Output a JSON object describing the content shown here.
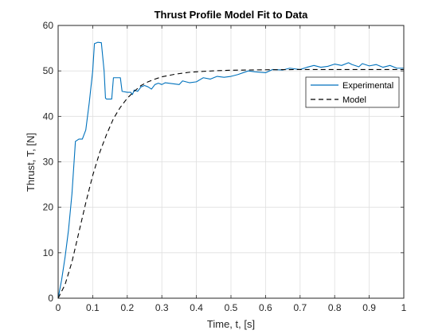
{
  "chart_data": {
    "type": "line",
    "title": "Thrust Profile Model Fit to Data",
    "xlabel": "Time, t, [s]",
    "ylabel": "Thrust, T, [N]",
    "xlim": [
      0,
      1
    ],
    "ylim": [
      0,
      60
    ],
    "xticks": [
      "0",
      "0.1",
      "0.2",
      "0.3",
      "0.4",
      "0.5",
      "0.6",
      "0.7",
      "0.8",
      "0.9",
      "1"
    ],
    "yticks": [
      "0",
      "10",
      "20",
      "30",
      "40",
      "50",
      "60"
    ],
    "grid": true,
    "legend_position": "upper-right",
    "series": [
      {
        "name": "Experimental",
        "style": "solid",
        "color": "#0072BD",
        "points": [
          [
            0.0,
            0.0
          ],
          [
            0.01,
            4.0
          ],
          [
            0.02,
            9.0
          ],
          [
            0.03,
            15.0
          ],
          [
            0.04,
            23.0
          ],
          [
            0.05,
            34.5
          ],
          [
            0.06,
            35.0
          ],
          [
            0.07,
            35.0
          ],
          [
            0.08,
            37.0
          ],
          [
            0.09,
            43.0
          ],
          [
            0.1,
            50.0
          ],
          [
            0.105,
            56.0
          ],
          [
            0.115,
            56.3
          ],
          [
            0.125,
            56.2
          ],
          [
            0.133,
            50.0
          ],
          [
            0.137,
            44.0
          ],
          [
            0.14,
            43.8
          ],
          [
            0.155,
            43.8
          ],
          [
            0.16,
            48.5
          ],
          [
            0.17,
            48.5
          ],
          [
            0.18,
            48.5
          ],
          [
            0.185,
            45.5
          ],
          [
            0.2,
            45.3
          ],
          [
            0.21,
            45.3
          ],
          [
            0.215,
            44.8
          ],
          [
            0.22,
            45.8
          ],
          [
            0.23,
            45.5
          ],
          [
            0.24,
            46.5
          ],
          [
            0.25,
            46.8
          ],
          [
            0.26,
            46.5
          ],
          [
            0.27,
            46.0
          ],
          [
            0.28,
            47.0
          ],
          [
            0.29,
            47.3
          ],
          [
            0.3,
            47.0
          ],
          [
            0.31,
            47.4
          ],
          [
            0.33,
            47.2
          ],
          [
            0.35,
            47.0
          ],
          [
            0.36,
            47.8
          ],
          [
            0.38,
            47.4
          ],
          [
            0.4,
            47.6
          ],
          [
            0.42,
            48.5
          ],
          [
            0.44,
            48.2
          ],
          [
            0.46,
            48.8
          ],
          [
            0.48,
            48.6
          ],
          [
            0.5,
            48.8
          ],
          [
            0.52,
            49.2
          ],
          [
            0.55,
            50.0
          ],
          [
            0.57,
            49.8
          ],
          [
            0.6,
            49.6
          ],
          [
            0.62,
            50.3
          ],
          [
            0.65,
            50.2
          ],
          [
            0.67,
            50.6
          ],
          [
            0.69,
            50.4
          ],
          [
            0.7,
            50.3
          ],
          [
            0.72,
            50.8
          ],
          [
            0.74,
            51.2
          ],
          [
            0.76,
            50.8
          ],
          [
            0.78,
            51.0
          ],
          [
            0.8,
            51.5
          ],
          [
            0.82,
            51.2
          ],
          [
            0.84,
            51.8
          ],
          [
            0.85,
            51.4
          ],
          [
            0.87,
            50.9
          ],
          [
            0.88,
            51.6
          ],
          [
            0.9,
            51.1
          ],
          [
            0.92,
            51.4
          ],
          [
            0.94,
            50.8
          ],
          [
            0.96,
            51.2
          ],
          [
            0.98,
            50.6
          ],
          [
            1.0,
            50.6
          ]
        ]
      },
      {
        "name": "Model",
        "style": "dashed",
        "color": "#000000",
        "points": [
          [
            0.0,
            0.0
          ],
          [
            0.02,
            3.0
          ],
          [
            0.04,
            8.0
          ],
          [
            0.06,
            14.5
          ],
          [
            0.08,
            21.0
          ],
          [
            0.1,
            27.0
          ],
          [
            0.12,
            32.0
          ],
          [
            0.14,
            36.0
          ],
          [
            0.16,
            39.5
          ],
          [
            0.18,
            42.0
          ],
          [
            0.2,
            44.0
          ],
          [
            0.22,
            45.5
          ],
          [
            0.24,
            46.8
          ],
          [
            0.26,
            47.6
          ],
          [
            0.28,
            48.2
          ],
          [
            0.3,
            48.7
          ],
          [
            0.34,
            49.3
          ],
          [
            0.38,
            49.7
          ],
          [
            0.42,
            49.9
          ],
          [
            0.46,
            50.05
          ],
          [
            0.5,
            50.15
          ],
          [
            0.6,
            50.25
          ],
          [
            0.7,
            50.3
          ],
          [
            0.8,
            50.3
          ],
          [
            0.9,
            50.3
          ],
          [
            1.0,
            50.3
          ]
        ]
      }
    ]
  }
}
